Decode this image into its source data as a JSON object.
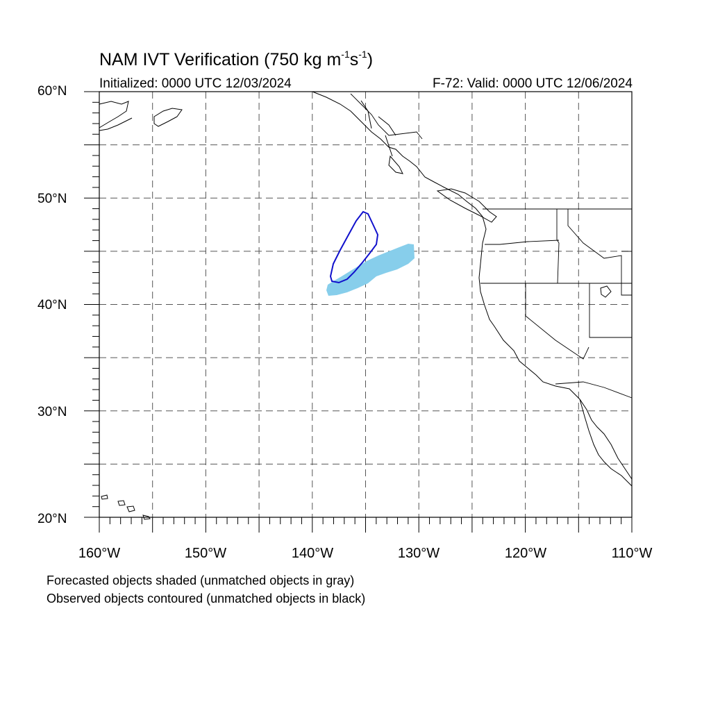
{
  "header": {
    "title_main": "NAM IVT Verification (750 kg m",
    "title_sup1": "-1",
    "title_mid": "s",
    "title_sup2": "-1",
    "title_end": ")",
    "initialized": "Initialized: 0000 UTC 12/03/2024",
    "valid": "F-72: Valid: 0000 UTC 12/06/2024"
  },
  "axes": {
    "lat_labels": [
      "60°N",
      "50°N",
      "40°N",
      "30°N",
      "20°N"
    ],
    "lon_labels": [
      "160°W",
      "150°W",
      "140°W",
      "130°W",
      "120°W",
      "110°W"
    ],
    "lat_range": [
      20,
      60
    ],
    "lon_range": [
      -160,
      -110
    ],
    "grid_spacing_deg": 5,
    "grid": "dashed"
  },
  "legend": {
    "line1": "Forecasted objects shaded (unmatched objects in gray)",
    "line2": "Observed objects contoured (unmatched objects in black)"
  },
  "objects": {
    "forecast_color": "#87CEEB",
    "observed_color": "#1010CC"
  }
}
